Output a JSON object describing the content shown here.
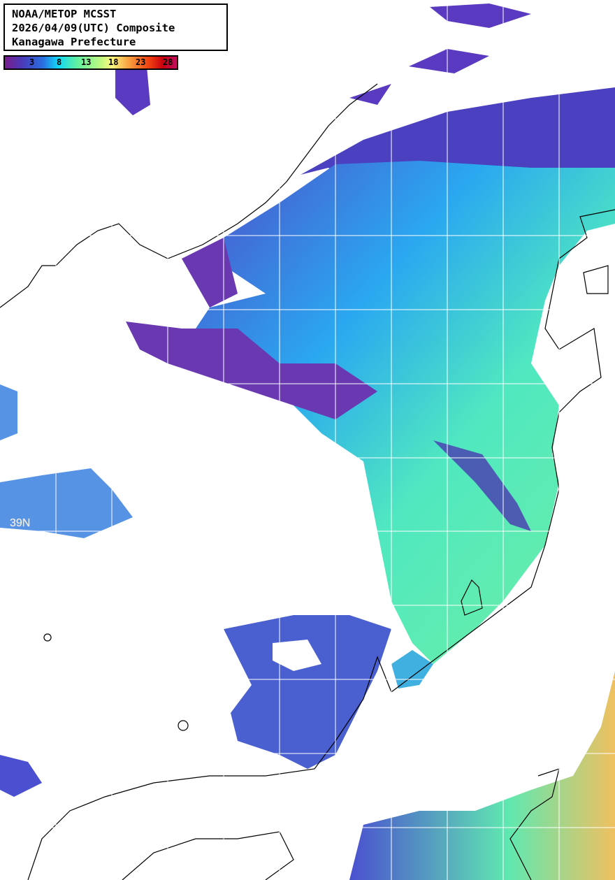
{
  "header": {
    "line1": "NOAA/METOP MCSST",
    "line2": "2026/04/09(UTC) Composite",
    "line3": "Kanagawa Prefecture"
  },
  "legend": {
    "ticks": [
      "3",
      "8",
      "13",
      "18",
      "23",
      "28"
    ],
    "colors": [
      "#7a1c8c",
      "#2a6ee0",
      "#10d8f8",
      "#60f0a0",
      "#f8f880",
      "#f8a040",
      "#f04010",
      "#c01060"
    ]
  },
  "grid": {
    "lat_label": "39N"
  }
}
